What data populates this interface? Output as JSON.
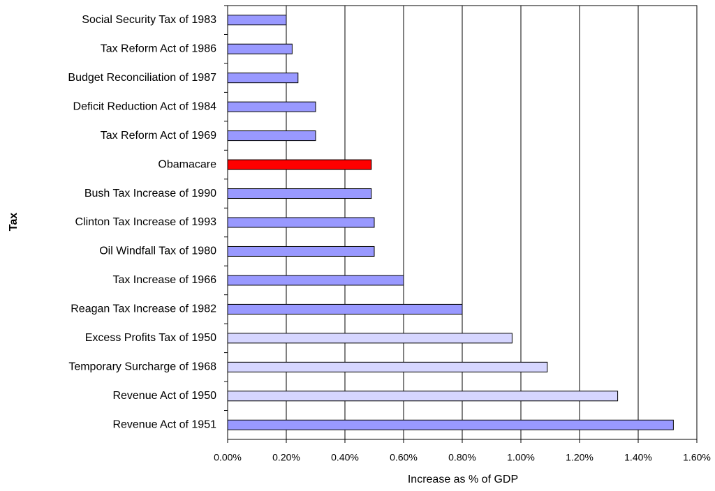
{
  "chart_data": {
    "type": "barh",
    "categories": [
      "Social Security Tax of 1983",
      "Tax Reform Act of 1986",
      "Budget Reconciliation of 1987",
      "Deficit Reduction Act of 1984",
      "Tax Reform Act of 1969",
      "Obamacare",
      "Bush Tax Increase of 1990",
      "Clinton Tax Increase of 1993",
      "Oil Windfall Tax of 1980",
      "Tax Increase of 1966",
      "Reagan Tax Increase of 1982",
      "Excess Profits Tax of 1950",
      "Temporary Surcharge of 1968",
      "Revenue Act of 1950",
      "Revenue Act of 1951"
    ],
    "values": [
      0.2,
      0.22,
      0.24,
      0.3,
      0.3,
      0.49,
      0.49,
      0.5,
      0.5,
      0.6,
      0.8,
      0.97,
      1.09,
      1.33,
      1.52
    ],
    "colors": [
      "#9999ff",
      "#9999ff",
      "#9999ff",
      "#9999ff",
      "#9999ff",
      "#ff0000",
      "#9999ff",
      "#9999ff",
      "#9999ff",
      "#9999ff",
      "#9999ff",
      "#d6d6ff",
      "#d6d6ff",
      "#d6d6ff",
      "#9999ff"
    ],
    "xlabel": "Increase as % of GDP",
    "ylabel": "Tax",
    "xlim": [
      0,
      1.6
    ],
    "xticks": [
      {
        "value": 0,
        "label": "0.00%"
      },
      {
        "value": 0.2,
        "label": "0.20%"
      },
      {
        "value": 0.4,
        "label": "0.40%"
      },
      {
        "value": 0.6,
        "label": "0.60%"
      },
      {
        "value": 0.8,
        "label": "0.80%"
      },
      {
        "value": 1.0,
        "label": "1.00%"
      },
      {
        "value": 1.2,
        "label": "1.20%"
      },
      {
        "value": 1.4,
        "label": "1.40%"
      },
      {
        "value": 1.6,
        "label": "1.60%"
      }
    ],
    "grid": true
  }
}
